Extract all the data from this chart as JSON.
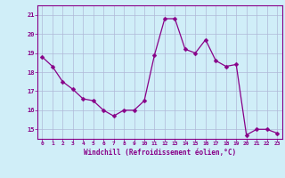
{
  "x": [
    0,
    1,
    2,
    3,
    4,
    5,
    6,
    7,
    8,
    9,
    10,
    11,
    12,
    13,
    14,
    15,
    16,
    17,
    18,
    19,
    20,
    21,
    22,
    23
  ],
  "y": [
    18.8,
    18.3,
    17.5,
    17.1,
    16.6,
    16.5,
    16.0,
    15.7,
    16.0,
    16.0,
    16.5,
    18.9,
    20.8,
    20.8,
    19.2,
    19.0,
    19.7,
    18.6,
    18.3,
    18.4,
    14.7,
    15.0,
    15.0,
    14.8
  ],
  "line_color": "#880088",
  "marker": "D",
  "marker_size": 2.5,
  "bg_color": "#d0eef8",
  "grid_color": "#b0b8d8",
  "ylabel_ticks": [
    15,
    16,
    17,
    18,
    19,
    20,
    21
  ],
  "xlabel_ticks": [
    0,
    1,
    2,
    3,
    4,
    5,
    6,
    7,
    8,
    9,
    10,
    11,
    12,
    13,
    14,
    15,
    16,
    17,
    18,
    19,
    20,
    21,
    22,
    23
  ],
  "xlabel": "Windchill (Refroidissement éolien,°C)",
  "ylim": [
    14.5,
    21.5
  ],
  "xlim": [
    -0.5,
    23.5
  ]
}
